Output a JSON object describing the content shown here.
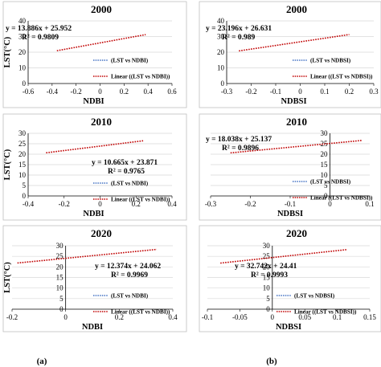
{
  "sublabels": [
    "(a)",
    "(b)"
  ],
  "chart_data": [
    {
      "type": "line",
      "title": "2000",
      "xlabel": "NDBI",
      "ylabel": "LST(°C)",
      "xlim": [
        -0.6,
        0.6
      ],
      "ylim": [
        0,
        40
      ],
      "xticks": [
        "-0.6",
        "-0.4",
        "-0.2",
        "0",
        "0.2",
        "0.4",
        "0.6"
      ],
      "yticks": [
        "0",
        "10",
        "20",
        "30",
        "40"
      ],
      "grid": "horizontal",
      "equation": "y = 13.886x + 25.952",
      "r2": "R² = 0.9809",
      "legend": [
        "(LST vs NDBI)",
        "Linear ((LST vs NDBI))"
      ],
      "legend_position": "bottom-right",
      "series": [
        {
          "x": [
            -0.36,
            0.38
          ],
          "y": [
            20.95,
            31.23
          ]
        }
      ]
    },
    {
      "type": "line",
      "title": "2000",
      "xlabel": "NDBSI",
      "ylabel": "",
      "xlim": [
        -0.3,
        0.3
      ],
      "ylim": [
        0,
        40
      ],
      "xticks": [
        "-0.3",
        "-0.2",
        "-0.1",
        "0",
        "0.1",
        "0.2",
        "0.3"
      ],
      "yticks": [
        "0",
        "10",
        "20",
        "30",
        "40"
      ],
      "grid": "horizontal",
      "equation": "y = 23.196x + 26.631",
      "r2": "R² = 0.989",
      "legend": [
        "(LST vs NDBSI)",
        "Linear ((LST vs NDBSI))"
      ],
      "legend_position": "bottom-right",
      "series": [
        {
          "x": [
            -0.25,
            0.2
          ],
          "y": [
            20.83,
            31.27
          ]
        }
      ]
    },
    {
      "type": "line",
      "title": "2010",
      "xlabel": "NDBI",
      "ylabel": "LST(°C)",
      "xlim": [
        -0.4,
        0.4
      ],
      "ylim": [
        0,
        30
      ],
      "xticks": [
        "-0.4",
        "-0.2",
        "0",
        "0.2",
        "0.4"
      ],
      "yticks": [
        "0",
        "5",
        "10",
        "15",
        "20",
        "25",
        "30"
      ],
      "grid": "horizontal",
      "equation": "y = 10.665x + 23.871",
      "r2": "R² = 0.9765",
      "legend": [
        "(LST vs NDBI)",
        "Linear ((LST vs NDBI))"
      ],
      "legend_position": "bottom-right",
      "series": [
        {
          "x": [
            -0.3,
            0.24
          ],
          "y": [
            20.67,
            26.43
          ]
        }
      ]
    },
    {
      "type": "line",
      "title": "2010",
      "xlabel": "NDBSI",
      "ylabel": "",
      "xlim": [
        -0.3,
        0.1
      ],
      "ylim": [
        0,
        30
      ],
      "xticks": [
        "-0.3",
        "-0.2",
        "-0.1",
        "0",
        "0.1"
      ],
      "yticks": [
        "0",
        "5",
        "10",
        "15",
        "20",
        "25",
        "30"
      ],
      "grid": "horizontal",
      "equation": "y = 18.038x + 25.137",
      "r2": "R² = 0.9896",
      "legend": [
        "(LST vs NDBSI)",
        "Linear ((LST vs NDBSI))"
      ],
      "legend_position": "bottom-right",
      "series": [
        {
          "x": [
            -0.25,
            0.08
          ],
          "y": [
            20.63,
            26.58
          ]
        }
      ]
    },
    {
      "type": "line",
      "title": "2020",
      "xlabel": "NDBI",
      "ylabel": "LST(°C)",
      "xlim": [
        -0.2,
        0.4
      ],
      "ylim": [
        0,
        30
      ],
      "xticks": [
        "-0.2",
        "0",
        "0.2",
        "0.4"
      ],
      "yticks": [
        "0",
        "5",
        "10",
        "15",
        "20",
        "25",
        "30"
      ],
      "grid": "horizontal",
      "equation": "y = 12.374x + 24.062",
      "r2": "R² = 0.9969",
      "legend": [
        "(LST vs NDBI)",
        "Linear ((LST vs NDBI))"
      ],
      "legend_position": "bottom-right",
      "series": [
        {
          "x": [
            -0.18,
            0.34
          ],
          "y": [
            21.83,
            28.27
          ]
        }
      ]
    },
    {
      "type": "line",
      "title": "2020",
      "xlabel": "NDBSI",
      "ylabel": "",
      "xlim": [
        -0.1,
        0.15
      ],
      "ylim": [
        0,
        30
      ],
      "xticks": [
        "-0.1",
        "-0.05",
        "0",
        "0.05",
        "0.1",
        "0.15"
      ],
      "yticks": [
        "0",
        "5",
        "10",
        "15",
        "20",
        "25",
        "30"
      ],
      "grid": "horizontal",
      "equation": "y = 32.742x + 24.41",
      "r2": "R² = 0.9993",
      "legend": [
        "(LST vs NDBSI)",
        "Linear ((LST vs NDBSI))"
      ],
      "legend_position": "bottom-right",
      "series": [
        {
          "x": [
            -0.08,
            0.115
          ],
          "y": [
            21.79,
            28.18
          ]
        }
      ]
    }
  ],
  "colors": {
    "trend": "#c00000",
    "series": "#4472c4",
    "grid": "#d9d9d9",
    "axis": "#000000"
  }
}
